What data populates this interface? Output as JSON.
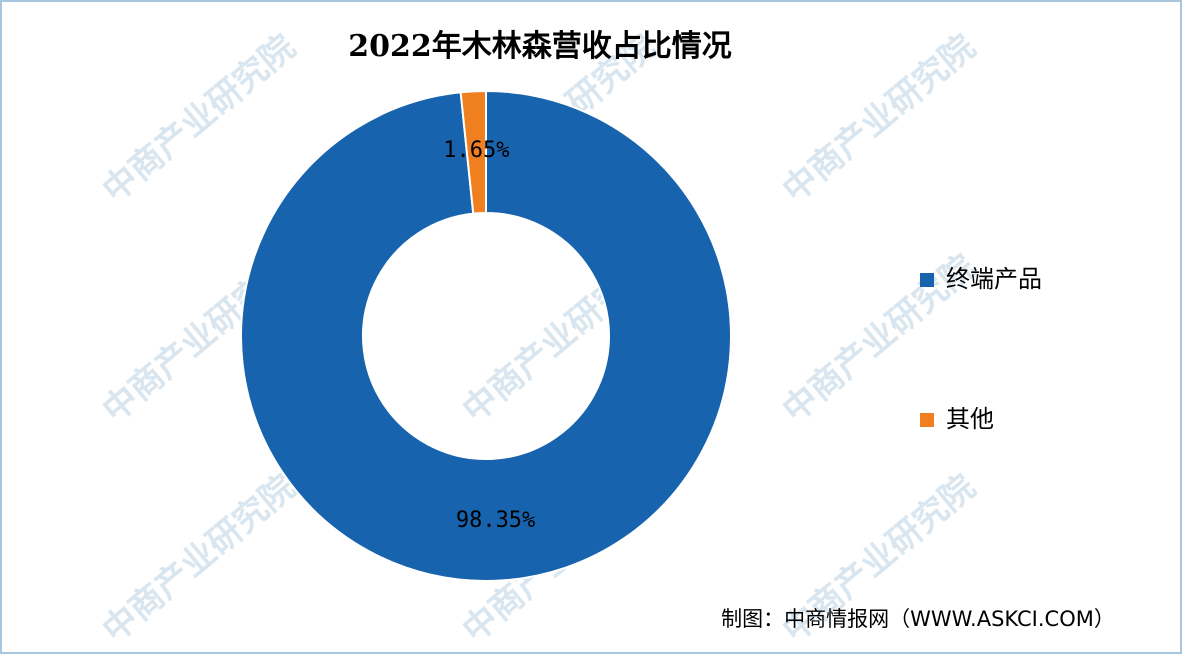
{
  "chart_data": {
    "type": "pie",
    "title": "2022年木林森营收占比情况",
    "categories": [
      "终端产品",
      "其他"
    ],
    "values": [
      98.35,
      1.65
    ],
    "value_labels": [
      "98.35%",
      "1.65%"
    ],
    "colors": [
      "#1763ad",
      "#f0801f"
    ],
    "donut": true,
    "legend": "right",
    "source": "制图：中商情报网（WWW.ASKCI.COM）",
    "watermark": "中商产业研究院"
  }
}
